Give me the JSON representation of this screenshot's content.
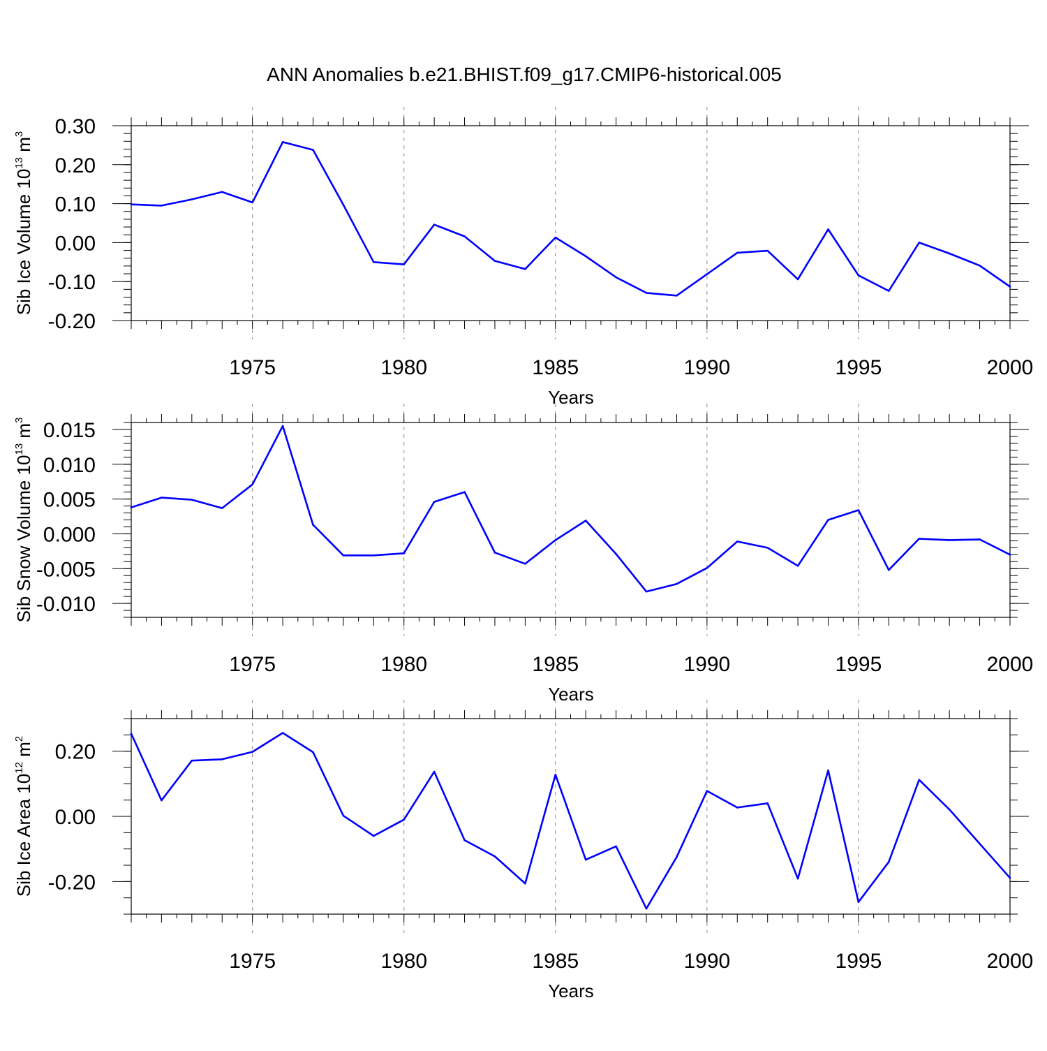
{
  "figure_title": "ANN Anomalies b.e21.BHIST.f09_g17.CMIP6-historical.005",
  "line_color": "#0000ff",
  "grid_color": "#888888",
  "chart_data": [
    {
      "type": "line",
      "ylabel": {
        "main": "Sib Ice Volume 10",
        "exp": "13",
        "unit": " m",
        "unit_exp": "3"
      },
      "xlabel": "Years",
      "xlim": [
        1971,
        2000
      ],
      "ylim": [
        -0.2,
        0.3
      ],
      "yticks": [
        {
          "v": -0.2,
          "label": "-0.20"
        },
        {
          "v": -0.1,
          "label": "-0.10"
        },
        {
          "v": 0.0,
          "label": "0.00"
        },
        {
          "v": 0.1,
          "label": "0.10"
        },
        {
          "v": 0.2,
          "label": "0.20"
        },
        {
          "v": 0.3,
          "label": "0.30"
        }
      ],
      "yminor_step": 0.02,
      "xticks": [
        {
          "v": 1975,
          "label": "1975"
        },
        {
          "v": 1980,
          "label": "1980"
        },
        {
          "v": 1985,
          "label": "1985"
        },
        {
          "v": 1990,
          "label": "1990"
        },
        {
          "v": 1995,
          "label": "1995"
        },
        {
          "v": 2000,
          "label": "2000"
        }
      ],
      "grid_x": [
        1975,
        1980,
        1985,
        1990,
        1995
      ],
      "years": [
        1971,
        1972,
        1973,
        1974,
        1975,
        1976,
        1977,
        1978,
        1979,
        1980,
        1981,
        1982,
        1983,
        1984,
        1985,
        1986,
        1987,
        1988,
        1989,
        1990,
        1991,
        1992,
        1993,
        1994,
        1995,
        1996,
        1997,
        1998,
        1999,
        2000
      ],
      "values": [
        0.098,
        0.095,
        0.111,
        0.13,
        0.103,
        0.258,
        0.238,
        0.097,
        -0.05,
        -0.056,
        0.046,
        0.016,
        -0.047,
        -0.068,
        0.013,
        -0.035,
        -0.089,
        -0.129,
        -0.136,
        -0.081,
        -0.026,
        -0.021,
        -0.094,
        0.034,
        -0.084,
        -0.124,
        0.0,
        -0.028,
        -0.059,
        -0.113
      ]
    },
    {
      "type": "line",
      "ylabel": {
        "main": "Sib Snow Volume 10",
        "exp": "13",
        "unit": " m",
        "unit_exp": "3"
      },
      "xlabel": "Years",
      "xlim": [
        1971,
        2000
      ],
      "ylim": [
        -0.012,
        0.016
      ],
      "yticks": [
        {
          "v": -0.01,
          "label": "-0.010"
        },
        {
          "v": -0.005,
          "label": "-0.005"
        },
        {
          "v": 0.0,
          "label": "0.000"
        },
        {
          "v": 0.005,
          "label": "0.005"
        },
        {
          "v": 0.01,
          "label": "0.010"
        },
        {
          "v": 0.015,
          "label": "0.015"
        }
      ],
      "yminor_step": 0.001,
      "xticks": [
        {
          "v": 1975,
          "label": "1975"
        },
        {
          "v": 1980,
          "label": "1980"
        },
        {
          "v": 1985,
          "label": "1985"
        },
        {
          "v": 1990,
          "label": "1990"
        },
        {
          "v": 1995,
          "label": "1995"
        },
        {
          "v": 2000,
          "label": "2000"
        }
      ],
      "grid_x": [
        1975,
        1980,
        1985,
        1990,
        1995
      ],
      "years": [
        1971,
        1972,
        1973,
        1974,
        1975,
        1976,
        1977,
        1978,
        1979,
        1980,
        1981,
        1982,
        1983,
        1984,
        1985,
        1986,
        1987,
        1988,
        1989,
        1990,
        1991,
        1992,
        1993,
        1994,
        1995,
        1996,
        1997,
        1998,
        1999,
        2000
      ],
      "values": [
        0.0038,
        0.0052,
        0.0049,
        0.0037,
        0.0071,
        0.0155,
        0.0013,
        -0.0031,
        -0.0031,
        -0.0028,
        0.0046,
        0.006,
        -0.0027,
        -0.0043,
        -0.0009,
        0.0019,
        -0.0029,
        -0.0083,
        -0.0072,
        -0.0049,
        -0.0011,
        -0.002,
        -0.0046,
        0.002,
        0.0034,
        -0.0052,
        -0.0007,
        -0.0009,
        -0.0008,
        -0.003
      ]
    },
    {
      "type": "line",
      "ylabel": {
        "main": "Sib Ice Area 10",
        "exp": "12",
        "unit": " m",
        "unit_exp": "2"
      },
      "xlabel": "Years",
      "xlim": [
        1971,
        2000
      ],
      "ylim": [
        -0.3,
        0.3
      ],
      "yticks": [
        {
          "v": -0.2,
          "label": "-0.20"
        },
        {
          "v": 0.0,
          "label": "0.00"
        },
        {
          "v": 0.2,
          "label": "0.20"
        }
      ],
      "yminor_step": 0.05,
      "xticks": [
        {
          "v": 1975,
          "label": "1975"
        },
        {
          "v": 1980,
          "label": "1980"
        },
        {
          "v": 1985,
          "label": "1985"
        },
        {
          "v": 1990,
          "label": "1990"
        },
        {
          "v": 1995,
          "label": "1995"
        },
        {
          "v": 2000,
          "label": "2000"
        }
      ],
      "grid_x": [
        1975,
        1980,
        1985,
        1990,
        1995
      ],
      "years": [
        1971,
        1972,
        1973,
        1974,
        1975,
        1976,
        1977,
        1978,
        1979,
        1980,
        1981,
        1982,
        1983,
        1984,
        1985,
        1986,
        1987,
        1988,
        1989,
        1990,
        1991,
        1992,
        1993,
        1994,
        1995,
        1996,
        1997,
        1998,
        1999,
        2000
      ],
      "values": [
        0.254,
        0.049,
        0.171,
        0.175,
        0.198,
        0.256,
        0.197,
        0.002,
        -0.06,
        -0.01,
        0.137,
        -0.073,
        -0.123,
        -0.206,
        0.128,
        -0.133,
        -0.092,
        -0.283,
        -0.125,
        0.078,
        0.027,
        0.04,
        -0.191,
        0.141,
        -0.263,
        -0.14,
        0.112,
        0.021,
        -0.084,
        -0.189
      ]
    }
  ]
}
